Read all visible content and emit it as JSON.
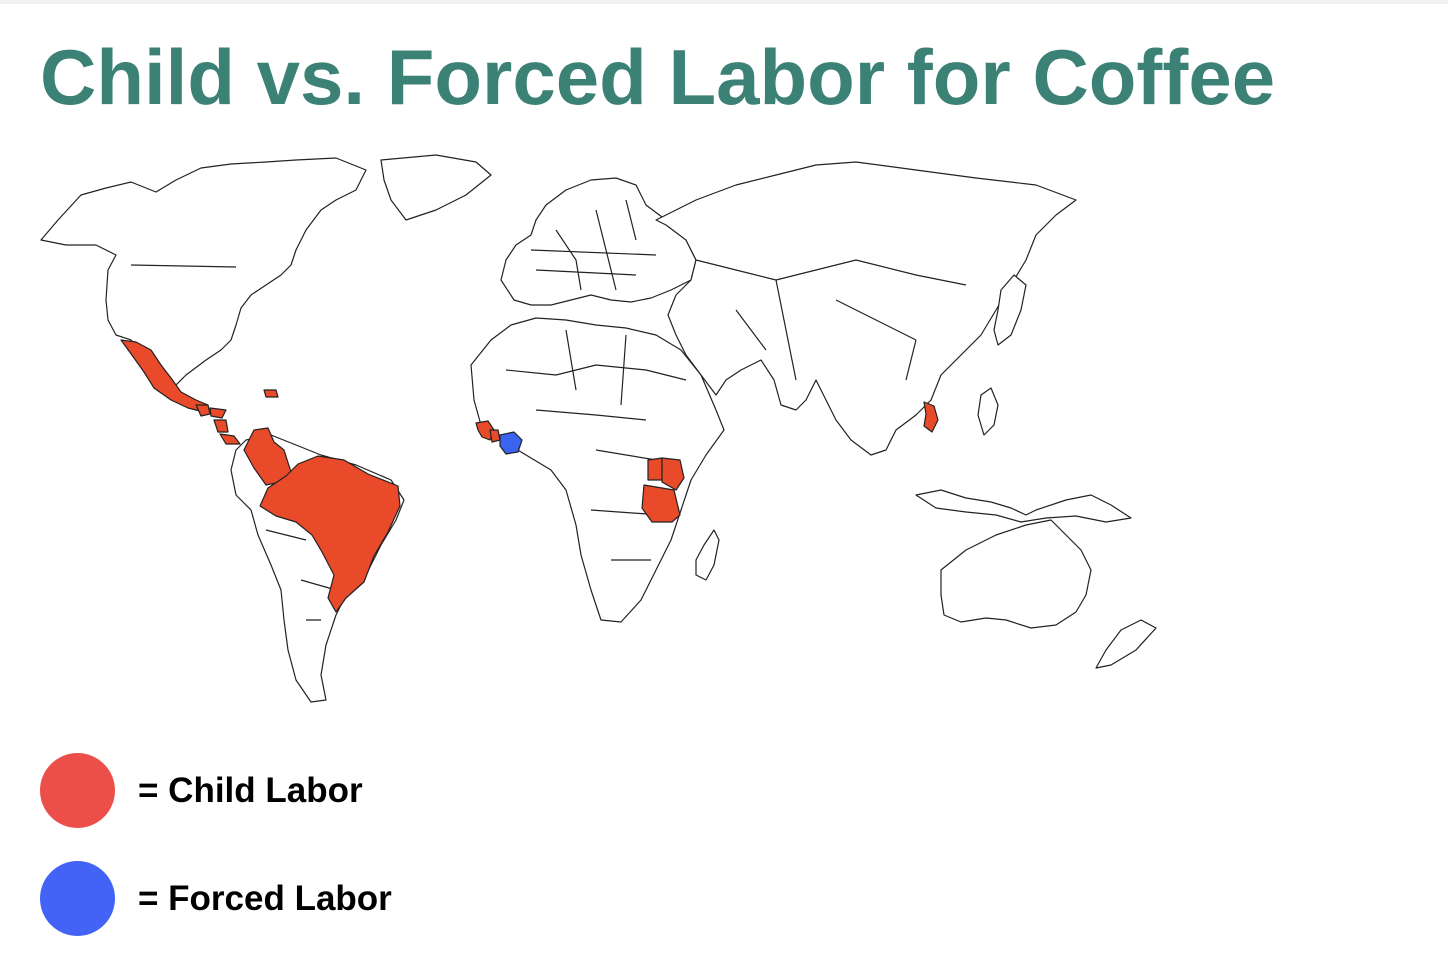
{
  "title": "Child vs. Forced Labor for Coffee",
  "colors": {
    "title": "#3b8175",
    "child_labor": "#e84a2a",
    "forced_labor": "#3c63f0",
    "legend_child": "#ec4e4a",
    "legend_forced": "#4263f5",
    "land": "#ffffff",
    "outline": "#222222"
  },
  "legend": {
    "child": {
      "label": "= Child Labor"
    },
    "forced": {
      "label": "= Forced Labor"
    }
  },
  "map": {
    "child_labor_regions": [
      "mexico",
      "guatemala",
      "honduras",
      "nicaragua",
      "costa-rica",
      "dominican-republic",
      "colombia",
      "brazil",
      "guinea",
      "sierra-leone",
      "kenya",
      "uganda",
      "tanzania",
      "vietnam"
    ],
    "forced_labor_regions": [
      "ivory-coast"
    ]
  }
}
